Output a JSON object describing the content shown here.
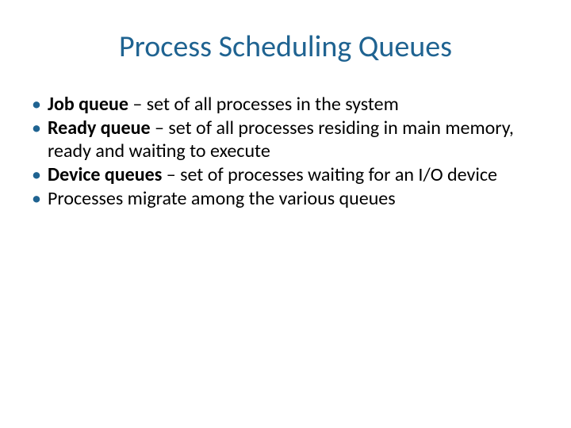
{
  "title": {
    "text": "Process Scheduling Queues",
    "color": "#1f6391",
    "fontsize": 38
  },
  "bullets": {
    "fontsize": 24,
    "line_height": 1.18,
    "bullet_color": "#1f6391",
    "text_color": "#000000",
    "items": [
      {
        "bold": "Job queue",
        "rest": " – set of all processes in the system"
      },
      {
        "bold": "Ready queue",
        "rest": " – set of all processes residing in main memory, ready and waiting to execute"
      },
      {
        "bold": "Device queues",
        "rest": " – set of processes waiting for an I/O device"
      },
      {
        "bold": "",
        "rest": "Processes migrate among the various queues"
      }
    ]
  }
}
